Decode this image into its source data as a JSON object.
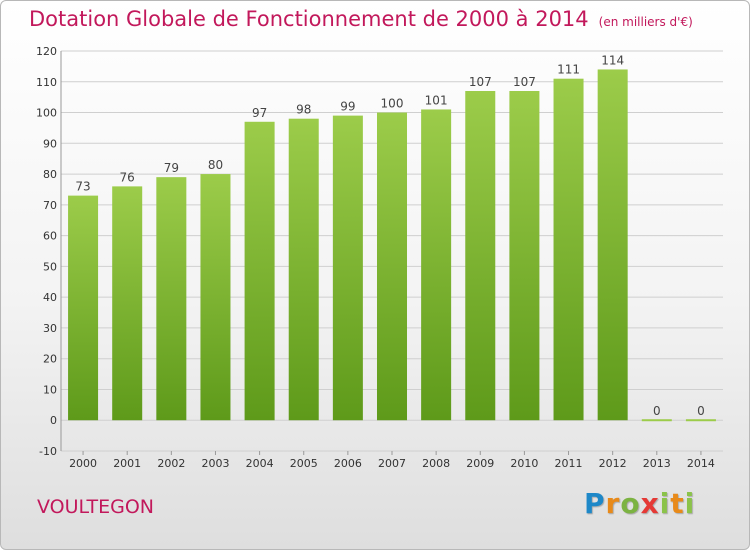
{
  "header": {
    "title": "Dotation Globale de Fonctionnement de 2000 à 2014",
    "subtitle": "(en milliers d'€)"
  },
  "footer": {
    "commune": "VOULTEGON",
    "brand": {
      "p": "P",
      "r": "r",
      "o": "o",
      "x": "x",
      "i": "i",
      "t": "t",
      "i2": "i"
    }
  },
  "colors": {
    "bar_light": "#9ccc4a",
    "bar_dark": "#5e9a1a",
    "title": "#c2185b",
    "grid": "#cfcfcf"
  },
  "chart_data": {
    "type": "bar",
    "title": "Dotation Globale de Fonctionnement de 2000 à 2014",
    "subtitle": "(en milliers d'€)",
    "categories": [
      "2000",
      "2001",
      "2002",
      "2003",
      "2004",
      "2005",
      "2006",
      "2007",
      "2008",
      "2009",
      "2010",
      "2011",
      "2012",
      "2013",
      "2014"
    ],
    "values": [
      73,
      76,
      79,
      80,
      97,
      98,
      99,
      100,
      101,
      107,
      107,
      111,
      114,
      0,
      0
    ],
    "ylim": [
      -10,
      120
    ],
    "yticks": [
      -10,
      0,
      10,
      20,
      30,
      40,
      50,
      60,
      70,
      80,
      90,
      100,
      110,
      120
    ],
    "xlabel": "",
    "ylabel": "",
    "grid": true,
    "legend": "none"
  }
}
